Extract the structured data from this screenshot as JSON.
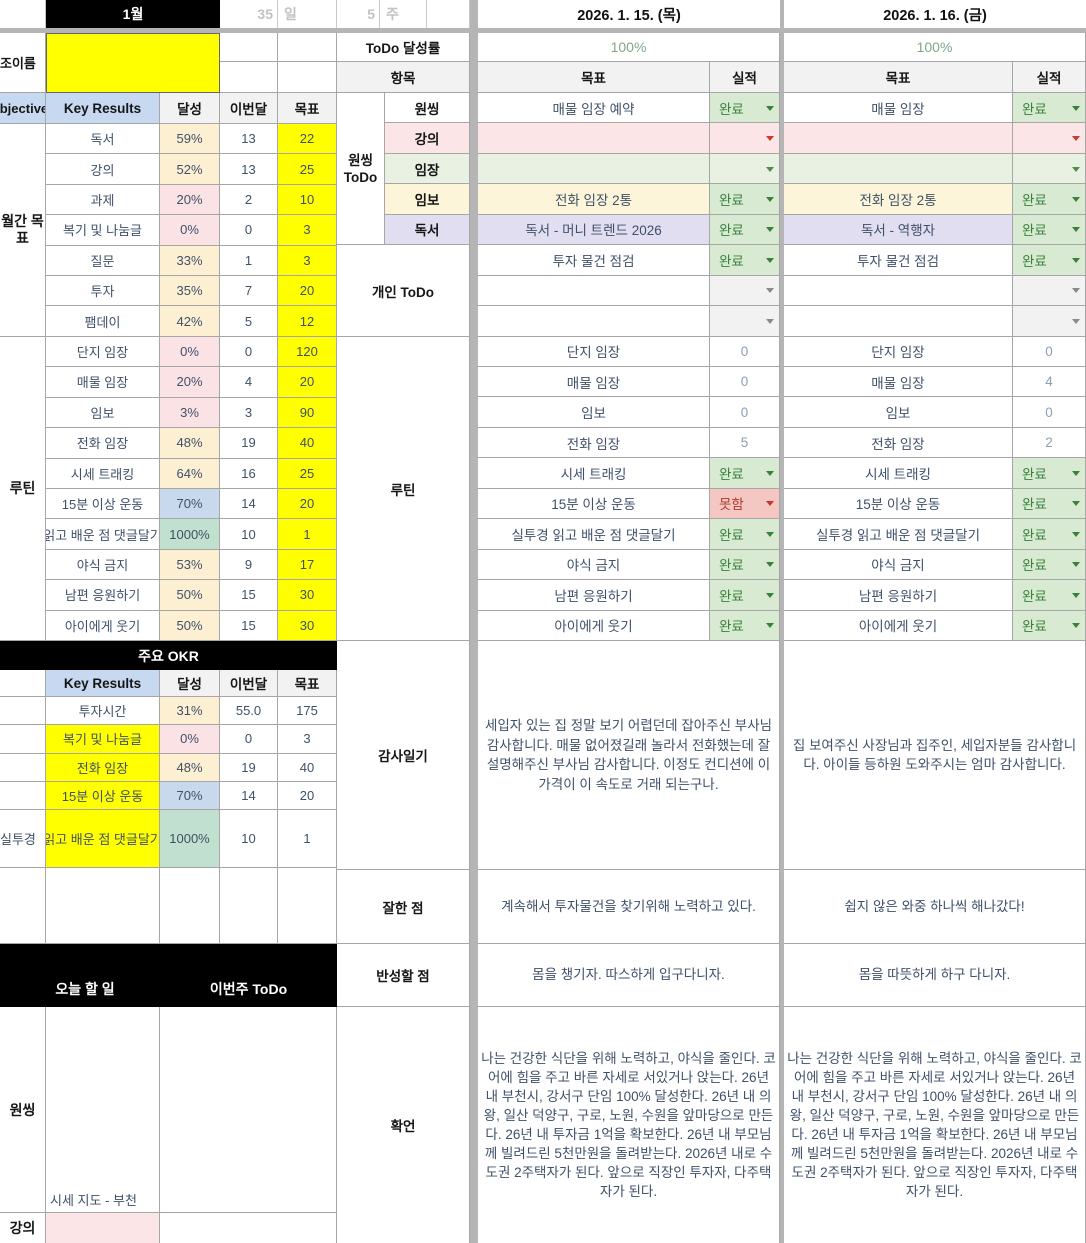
{
  "header": {
    "month": "1월",
    "day_count": "35",
    "day_unit": "일",
    "week_count": "5",
    "week_unit": "주",
    "name_label": "조이름"
  },
  "left": {
    "objectives_header": "Objectives",
    "key_results_header": "Key Results",
    "achieve_header": "달성",
    "month_col_header": "이번달",
    "goal_col_header": "목표",
    "groups": [
      {
        "label": "월간 목표",
        "rows": [
          {
            "name": "독서",
            "pct": "59%",
            "cur": "13",
            "goal": "22",
            "tint": "cream"
          },
          {
            "name": "강의",
            "pct": "52%",
            "cur": "13",
            "goal": "25",
            "tint": "cream"
          },
          {
            "name": "과제",
            "pct": "20%",
            "cur": "2",
            "goal": "10",
            "tint": "pink"
          },
          {
            "name": "복기 및 나눔글",
            "pct": "0%",
            "cur": "0",
            "goal": "3",
            "tint": "pink"
          },
          {
            "name": "질문",
            "pct": "33%",
            "cur": "1",
            "goal": "3",
            "tint": "cream"
          },
          {
            "name": "투자",
            "pct": "35%",
            "cur": "7",
            "goal": "20",
            "tint": "cream"
          },
          {
            "name": "팸데이",
            "pct": "42%",
            "cur": "5",
            "goal": "12",
            "tint": "cream"
          }
        ]
      },
      {
        "label": "루틴",
        "rows": [
          {
            "name": "단지 임장",
            "pct": "0%",
            "cur": "0",
            "goal": "120",
            "tint": "pink"
          },
          {
            "name": "매물 임장",
            "pct": "20%",
            "cur": "4",
            "goal": "20",
            "tint": "pink"
          },
          {
            "name": "임보",
            "pct": "3%",
            "cur": "3",
            "goal": "90",
            "tint": "pink"
          },
          {
            "name": "전화 임장",
            "pct": "48%",
            "cur": "19",
            "goal": "40",
            "tint": "cream"
          },
          {
            "name": "시세 트래킹",
            "pct": "64%",
            "cur": "16",
            "goal": "25",
            "tint": "cream"
          },
          {
            "name": "15분 이상 운동",
            "pct": "70%",
            "cur": "14",
            "goal": "20",
            "tint": "blue"
          },
          {
            "name": "읽고 배운 점 댓글달기",
            "pct": "1000%",
            "cur": "10",
            "goal": "1",
            "tint": "green"
          },
          {
            "name": "야식 금지",
            "pct": "53%",
            "cur": "9",
            "goal": "17",
            "tint": "cream"
          },
          {
            "name": "남편 응원하기",
            "pct": "50%",
            "cur": "15",
            "goal": "30",
            "tint": "cream"
          },
          {
            "name": "아이에게 웃기",
            "pct": "50%",
            "cur": "15",
            "goal": "30",
            "tint": "cream"
          }
        ]
      }
    ],
    "major_okr": {
      "title": "주요 OKR",
      "rows": [
        {
          "obj": "",
          "name": "투자시간",
          "kr_bg": "white",
          "pct": "31%",
          "tint": "cream",
          "cur": "55.0",
          "goal": "175",
          "tall": false
        },
        {
          "obj": "",
          "name": "복기 및 나눔글",
          "kr_bg": "yellow",
          "pct": "0%",
          "tint": "pink",
          "cur": "0",
          "goal": "3",
          "tall": false
        },
        {
          "obj": "",
          "name": "전화 임장",
          "kr_bg": "yellow",
          "pct": "48%",
          "tint": "cream",
          "cur": "19",
          "goal": "40",
          "tall": false
        },
        {
          "obj": "",
          "name": "15분 이상 운동",
          "kr_bg": "yellow",
          "pct": "70%",
          "tint": "blue",
          "cur": "14",
          "goal": "20",
          "tall": false
        },
        {
          "obj": "실투경",
          "name": "읽고 배운 점 댓글달기",
          "kr_bg": "yellow",
          "pct": "1000%",
          "tint": "green",
          "cur": "10",
          "goal": "1",
          "tall": true
        }
      ]
    },
    "bottom": {
      "today_header": "오늘 할 일",
      "week_header": "이번주 ToDo",
      "onething_label": "원씽",
      "onething_note": "시세 지도 - 부천",
      "lecture_label": "강의"
    }
  },
  "middle": {
    "todo_rate": "ToDo 달성률",
    "item": "항목",
    "onething_group": "원씽 ToDo",
    "onething_items": [
      {
        "label": "원씽",
        "tint": "white"
      },
      {
        "label": "강의",
        "tint": "pink"
      },
      {
        "label": "임장",
        "tint": "green"
      },
      {
        "label": "임보",
        "tint": "cream"
      },
      {
        "label": "독서",
        "tint": "lavender"
      }
    ],
    "personal": "개인 ToDo",
    "routine": "루틴",
    "gratitude": "감사일기",
    "well_done": "잘한 점",
    "reflection": "반성할 점",
    "affirmation": "확언"
  },
  "days": [
    {
      "date": "2026. 1. 15. (목)",
      "rate": "100%",
      "goal_header": "목표",
      "actual_header": "실적",
      "todo_rows": [
        {
          "goal": "매물 임장 예약",
          "tint": "white",
          "status": "done",
          "status_text": "완료"
        },
        {
          "goal": "",
          "tint": "pink",
          "status": "empty-red",
          "status_text": ""
        },
        {
          "goal": "",
          "tint": "green",
          "status": "empty-green",
          "status_text": ""
        },
        {
          "goal": "전화 임장 2통",
          "tint": "cream",
          "status": "done",
          "status_text": "완료"
        },
        {
          "goal": "독서 - 머니 트렌드 2026",
          "tint": "lavender",
          "status": "done",
          "status_text": "완료"
        },
        {
          "goal": "투자 물건 점검",
          "tint": "white",
          "status": "done",
          "status_text": "완료"
        },
        {
          "goal": "",
          "tint": "white",
          "status": "empty-gray",
          "status_text": ""
        },
        {
          "goal": "",
          "tint": "white",
          "status": "empty-gray",
          "status_text": ""
        },
        {
          "goal": "단지 임장",
          "tint": "white",
          "status": "count",
          "status_text": "0"
        },
        {
          "goal": "매물 임장",
          "tint": "white",
          "status": "count",
          "status_text": "0"
        },
        {
          "goal": "임보",
          "tint": "white",
          "status": "count",
          "status_text": "0"
        },
        {
          "goal": "전화 임장",
          "tint": "white",
          "status": "count",
          "status_text": "5"
        },
        {
          "goal": "시세 트래킹",
          "tint": "white",
          "status": "done",
          "status_text": "완료"
        },
        {
          "goal": "15분 이상 운동",
          "tint": "white",
          "status": "fail",
          "status_text": "못함"
        },
        {
          "goal": "실투경 읽고 배운 점 댓글달기",
          "tint": "white",
          "status": "done",
          "status_text": "완료"
        },
        {
          "goal": "야식 금지",
          "tint": "white",
          "status": "done",
          "status_text": "완료"
        },
        {
          "goal": "남편 응원하기",
          "tint": "white",
          "status": "done",
          "status_text": "완료"
        },
        {
          "goal": "아이에게 웃기",
          "tint": "white",
          "status": "done",
          "status_text": "완료"
        }
      ],
      "gratitude": "세입자 있는 집 정말 보기 어렵던데 잡아주신 부사님 감사합니다. 매물 없어졌길래 놀라서 전화했는데 잘 설명해주신 부사님 감사합니다. 이정도 컨디션에 이 가격이 이 속도로 거래 되는구나.",
      "well_done": "계속해서 투자물건을 찾기위해 노력하고 있다.",
      "reflection": "몸을 챙기자. 따스하게 입구다니자.",
      "affirmation": "나는 건강한 식단을 위해 노력하고, 야식을 줄인다. 코어에 힘을 주고 바른 자세로 서있거나 앉는다. 26년 내 부천시, 강서구 단임 100% 달성한다. 26년 내 의왕, 일산 덕양구, 구로, 노원, 수원을 앞마당으로 만든다. 26년 내 투자금 1억을 확보한다. 26년 내 부모님께 빌려드린 5천만원을 돌려받는다. 2026년 내로 수도권 2주택자가 된다. 앞으로 직장인 투자자, 다주택자가 된다."
    },
    {
      "date": "2026. 1. 16. (금)",
      "rate": "100%",
      "goal_header": "목표",
      "actual_header": "실적",
      "todo_rows": [
        {
          "goal": "매물 임장",
          "tint": "white",
          "status": "done",
          "status_text": "완료"
        },
        {
          "goal": "",
          "tint": "pink",
          "status": "empty-red",
          "status_text": ""
        },
        {
          "goal": "",
          "tint": "green",
          "status": "empty-green",
          "status_text": ""
        },
        {
          "goal": "전화 임장 2통",
          "tint": "cream",
          "status": "done",
          "status_text": "완료"
        },
        {
          "goal": "독서 - 역행자",
          "tint": "lavender",
          "status": "done",
          "status_text": "완료"
        },
        {
          "goal": "투자 물건 점검",
          "tint": "white",
          "status": "done",
          "status_text": "완료"
        },
        {
          "goal": "",
          "tint": "white",
          "status": "empty-gray",
          "status_text": ""
        },
        {
          "goal": "",
          "tint": "white",
          "status": "empty-gray",
          "status_text": ""
        },
        {
          "goal": "단지 임장",
          "tint": "white",
          "status": "count",
          "status_text": "0"
        },
        {
          "goal": "매물 임장",
          "tint": "white",
          "status": "count",
          "status_text": "4"
        },
        {
          "goal": "임보",
          "tint": "white",
          "status": "count",
          "status_text": "0"
        },
        {
          "goal": "전화 임장",
          "tint": "white",
          "status": "count",
          "status_text": "2"
        },
        {
          "goal": "시세 트래킹",
          "tint": "white",
          "status": "done",
          "status_text": "완료"
        },
        {
          "goal": "15분 이상 운동",
          "tint": "white",
          "status": "done",
          "status_text": "완료"
        },
        {
          "goal": "실투경 읽고 배운 점 댓글달기",
          "tint": "white",
          "status": "done",
          "status_text": "완료"
        },
        {
          "goal": "야식 금지",
          "tint": "white",
          "status": "done",
          "status_text": "완료"
        },
        {
          "goal": "남편 응원하기",
          "tint": "white",
          "status": "done",
          "status_text": "완료"
        },
        {
          "goal": "아이에게 웃기",
          "tint": "white",
          "status": "done",
          "status_text": "완료"
        }
      ],
      "gratitude": "집 보여주신 사장님과 집주인, 세입자분들 감사합니다. 아이들 등하원 도와주시는 엄마 감사합니다.",
      "well_done": "쉽지 않은 와중 하나씩 해나갔다!",
      "reflection": "몸을 따뜻하게 하구 다니자.",
      "affirmation": "나는 건강한 식단을 위해 노력하고, 야식을 줄인다. 코어에 힘을 주고 바른 자세로 서있거나 앉는다. 26년 내 부천시, 강서구 단임 100% 달성한다. 26년 내 의왕, 일산 덕양구, 구로, 노원, 수원을 앞마당으로 만든다. 26년 내 투자금 1억을 확보한다. 26년 내 부모님께 빌려드린 5천만원을 돌려받는다. 2026년 내로 수도권 2주택자가 된다. 앞으로 직장인 투자자, 다주택자가 된다."
    }
  ],
  "colors": {
    "yellow": "#ffff00",
    "tint_cream": "#fdf0d2",
    "tint_pink": "#fbe3e5",
    "tint_blue": "#c8d9ed",
    "tint_green": "#c2e0cf",
    "row_pink": "#fbe5e6",
    "row_green": "#e8f1e2",
    "row_cream": "#fdf5da",
    "row_lavender": "#e1def1",
    "done_bg": "#d9ead3",
    "done_text": "#37813b",
    "fail_bg": "#f4c7c3",
    "fail_text": "#b03a2e",
    "empty_bg": "#f2f2f2",
    "count_text": "#8d9db4",
    "rate_text": "#7fa88b",
    "header_bg": "#f2f2f2",
    "blue_header_bg": "#c6d9f1",
    "grid": "#a6a6a6",
    "text": "#3f5069"
  }
}
